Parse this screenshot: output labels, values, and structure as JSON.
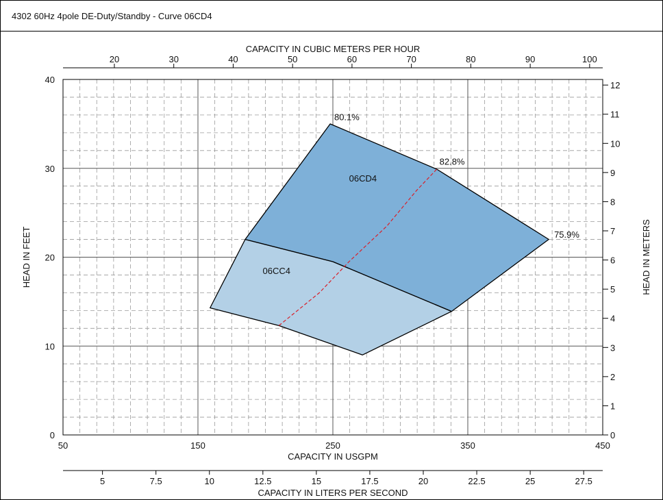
{
  "header": {
    "title": "4302 60Hz 4pole DE-Duty/Standby - Curve 06CD4"
  },
  "colors": {
    "region_06CD4": "#7eb0d8",
    "region_06CC4": "#b3d0e6",
    "bep_line": "#d8202a",
    "grid_major": "#555555",
    "grid_minor": "#999999"
  },
  "chart_data": {
    "type": "area",
    "axes": {
      "x_bottom": {
        "label": "CAPACITY IN USGPM",
        "range": [
          50,
          450
        ],
        "ticks": [
          50,
          150,
          250,
          350,
          450
        ]
      },
      "x_top": {
        "label": "CAPACITY IN CUBIC METERS PER HOUR",
        "ticks": [
          20,
          30,
          40,
          50,
          60,
          70,
          80,
          90,
          100
        ]
      },
      "x_lower": {
        "label": "CAPACITY IN LITERS PER SECOND",
        "ticks": [
          5,
          7.5,
          10,
          12.5,
          15,
          17.5,
          20,
          22.5,
          25,
          27.5
        ]
      },
      "y_left": {
        "label": "HEAD IN FEET",
        "range": [
          0,
          40
        ],
        "ticks": [
          0,
          10,
          20,
          30,
          40
        ]
      },
      "y_right": {
        "label": "HEAD IN METERS",
        "ticks": [
          0,
          1,
          2,
          3,
          4,
          5,
          6,
          7,
          8,
          9,
          10,
          11,
          12
        ]
      }
    },
    "grid": true,
    "regions": [
      {
        "name": "06CD4",
        "boundary": [
          {
            "x": 185,
            "y": 22.0
          },
          {
            "x": 248,
            "y": 35.0
          },
          {
            "x": 327,
            "y": 29.9
          },
          {
            "x": 410,
            "y": 22.0
          },
          {
            "x": 338,
            "y": 13.9
          },
          {
            "x": 250,
            "y": 19.5
          },
          {
            "x": 185,
            "y": 22.0
          }
        ]
      },
      {
        "name": "06CC4",
        "boundary": [
          {
            "x": 185,
            "y": 22.0
          },
          {
            "x": 250,
            "y": 19.5
          },
          {
            "x": 338,
            "y": 13.9
          },
          {
            "x": 272,
            "y": 9.0
          },
          {
            "x": 210,
            "y": 12.3
          },
          {
            "x": 159,
            "y": 14.3
          },
          {
            "x": 185,
            "y": 22.0
          }
        ]
      }
    ],
    "bep_curve": [
      {
        "x": 210,
        "y": 12.3
      },
      {
        "x": 240,
        "y": 16.0
      },
      {
        "x": 262,
        "y": 19.5
      },
      {
        "x": 290,
        "y": 23.5
      },
      {
        "x": 312,
        "y": 27.5
      },
      {
        "x": 327,
        "y": 29.9
      }
    ],
    "annotations": [
      {
        "text": "80.1%",
        "x": 251,
        "y": 35.4
      },
      {
        "text": "82.8%",
        "x": 329,
        "y": 30.4
      },
      {
        "text": "75.9%",
        "x": 414,
        "y": 22.2
      },
      {
        "text": "06CD4",
        "x": 262,
        "y": 28.5
      },
      {
        "text": "06CC4",
        "x": 198,
        "y": 18.1
      }
    ]
  }
}
